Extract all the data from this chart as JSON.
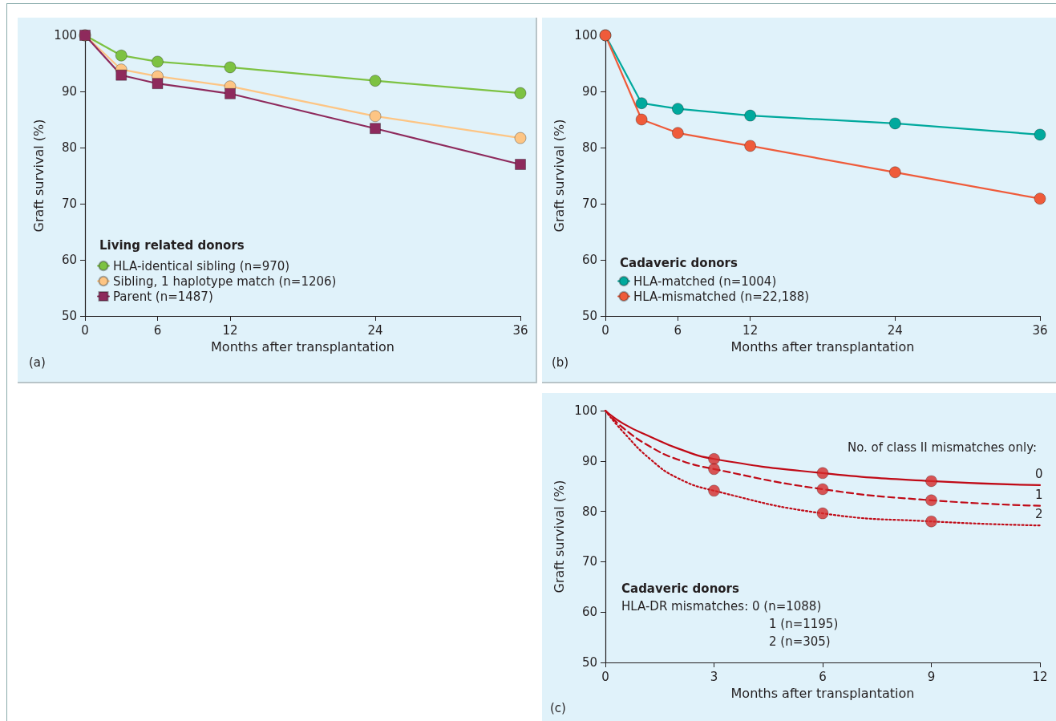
{
  "chart_data": [
    {
      "type": "line",
      "xlabel": "Months after transplantation",
      "ylabel": "Graft survival (%)",
      "legend_title": "Living related donors",
      "legend": "bottom left",
      "grid": false,
      "x": [
        0,
        3,
        6,
        12,
        24,
        36
      ],
      "xlim": [
        0,
        36
      ],
      "xticks": [
        0,
        6,
        12,
        24,
        36
      ],
      "ylim": [
        50,
        100
      ],
      "yticks": [
        50,
        60,
        70,
        80,
        90,
        100
      ],
      "series": [
        {
          "name": "HLA-identical sibling (n=970)",
          "color": "#7dc242",
          "marker": "circle",
          "values": [
            100,
            96.4,
            95.3,
            94.3,
            91.9,
            89.7
          ]
        },
        {
          "name": "Sibling, 1 haplotype match (n=1206)",
          "color": "#fdc584",
          "marker": "circle",
          "values": [
            100,
            93.9,
            92.7,
            90.9,
            85.6,
            81.7
          ]
        },
        {
          "name": "Parent (n=1487)",
          "color": "#8e2a5c",
          "marker": "square",
          "values": [
            100,
            92.9,
            91.4,
            89.6,
            83.4,
            77.0
          ]
        }
      ],
      "annotations": [
        "(a)"
      ]
    },
    {
      "type": "line",
      "xlabel": "Months after transplantation",
      "ylabel": "Graft survival (%)",
      "legend_title": "Cadaveric donors",
      "legend": "bottom left",
      "grid": false,
      "x": [
        0,
        3,
        6,
        12,
        24,
        36
      ],
      "xlim": [
        0,
        36
      ],
      "xticks": [
        0,
        6,
        12,
        24,
        36
      ],
      "ylim": [
        50,
        100
      ],
      "yticks": [
        50,
        60,
        70,
        80,
        90,
        100
      ],
      "series": [
        {
          "name": "HLA-matched (n=1004)",
          "color": "#00a99d",
          "marker": "circle",
          "values": [
            100,
            87.9,
            86.9,
            85.7,
            84.3,
            82.3
          ]
        },
        {
          "name": "HLA-mismatched (n=22,188)",
          "color": "#ef5b3a",
          "marker": "circle",
          "values": [
            100,
            85.0,
            82.6,
            80.3,
            75.6,
            70.9
          ]
        }
      ],
      "annotations": [
        "(b)"
      ]
    },
    {
      "type": "line",
      "xlabel": "Months after transplantation",
      "ylabel": "Graft survival (%)",
      "legend": false,
      "grid": false,
      "xlim": [
        0,
        12
      ],
      "xticks": [
        0,
        3,
        6,
        9,
        12
      ],
      "ylim": [
        50,
        100
      ],
      "yticks": [
        50,
        60,
        70,
        80,
        90,
        100
      ],
      "series": [
        {
          "name": "0",
          "color": "#c00a16",
          "marker": "none",
          "line_style": "solid",
          "x": [
            0,
            0.5,
            1.25,
            2,
            3,
            6,
            9,
            12
          ],
          "values": [
            100,
            97.4,
            94.8,
            92.5,
            90.4,
            87.6,
            86.0,
            85.2
          ]
        },
        {
          "name": "1",
          "color": "#c00a16",
          "marker": "none",
          "line_style": "dashed",
          "x": [
            0,
            0.5,
            1.25,
            2,
            3,
            6,
            9,
            12
          ],
          "values": [
            100,
            96.5,
            92.8,
            90.3,
            88.4,
            84.4,
            82.2,
            81.1
          ]
        },
        {
          "name": "2",
          "color": "#c00a16",
          "marker": "none",
          "line_style": "dotted",
          "x": [
            0,
            0.5,
            1.25,
            2,
            3,
            6,
            9,
            12
          ],
          "values": [
            100,
            95.7,
            90.3,
            86.6,
            84.1,
            79.6,
            78.0,
            77.2
          ]
        },
        {
          "type": "scatter",
          "color": "#d42a2a",
          "marker": "circle",
          "x": [
            3,
            6,
            9
          ],
          "values": [
            90.4,
            87.6,
            86.0
          ]
        },
        {
          "type": "scatter",
          "color": "#d42a2a",
          "marker": "circle",
          "x": [
            3,
            6,
            9
          ],
          "values": [
            88.4,
            84.4,
            82.2
          ]
        },
        {
          "type": "scatter",
          "color": "#d42a2a",
          "marker": "circle",
          "x": [
            3,
            6,
            9
          ],
          "values": [
            84.1,
            79.6,
            78.0
          ]
        }
      ],
      "annotations": [
        "No. of class II mismatches only:",
        "Cadaveric donors",
        "HLA-DR mismatches: 0 (n=1088)",
        "1 (n=1195)",
        "2 (n=305)",
        "(c)"
      ]
    }
  ]
}
